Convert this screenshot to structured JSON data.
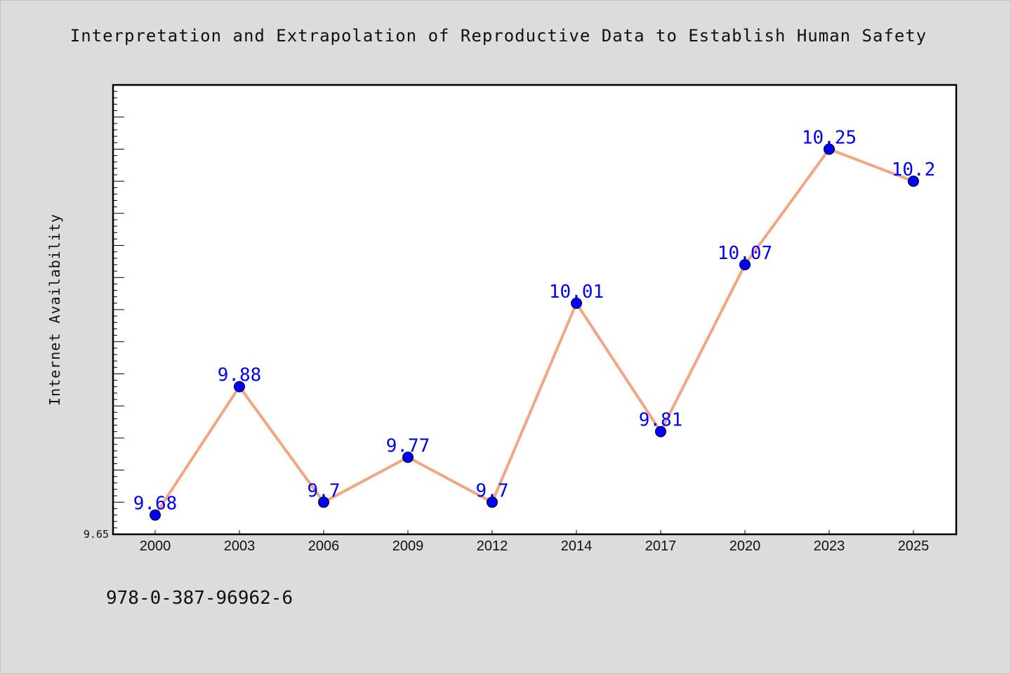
{
  "title": "Interpretation and Extrapolation of Reproductive Data to Establish Human Safety",
  "footer_text": "978-0-387-96962-6",
  "chart_data": {
    "type": "line",
    "title": "Interpretation and Extrapolation of Reproductive Data to Establish Human Safety",
    "xlabel": "",
    "ylabel": "Internet Availability",
    "categories": [
      "2000",
      "2003",
      "2006",
      "2009",
      "2012",
      "2014",
      "2017",
      "2020",
      "2023",
      "2025"
    ],
    "series": [
      {
        "values": [
          9.68,
          9.88,
          9.7,
          9.77,
          9.7,
          10.01,
          9.81,
          10.07,
          10.25,
          10.2
        ],
        "data_labels": [
          "9.68",
          "9.88",
          "9.7",
          "9.77",
          "9.7",
          "10.01",
          "9.81",
          "10.07",
          "10.25",
          "10.2"
        ]
      }
    ],
    "ylim": [
      9.65,
      10.35
    ],
    "y_tick_labels": [
      "9.65"
    ],
    "y_minor_step": 0.01,
    "grid": false,
    "legend": "none",
    "colors": {
      "line": "#f4a582",
      "marker": "#0000ff",
      "label": "#0000ff",
      "plot_bg": "#ffffff",
      "axis": "#000000"
    }
  }
}
